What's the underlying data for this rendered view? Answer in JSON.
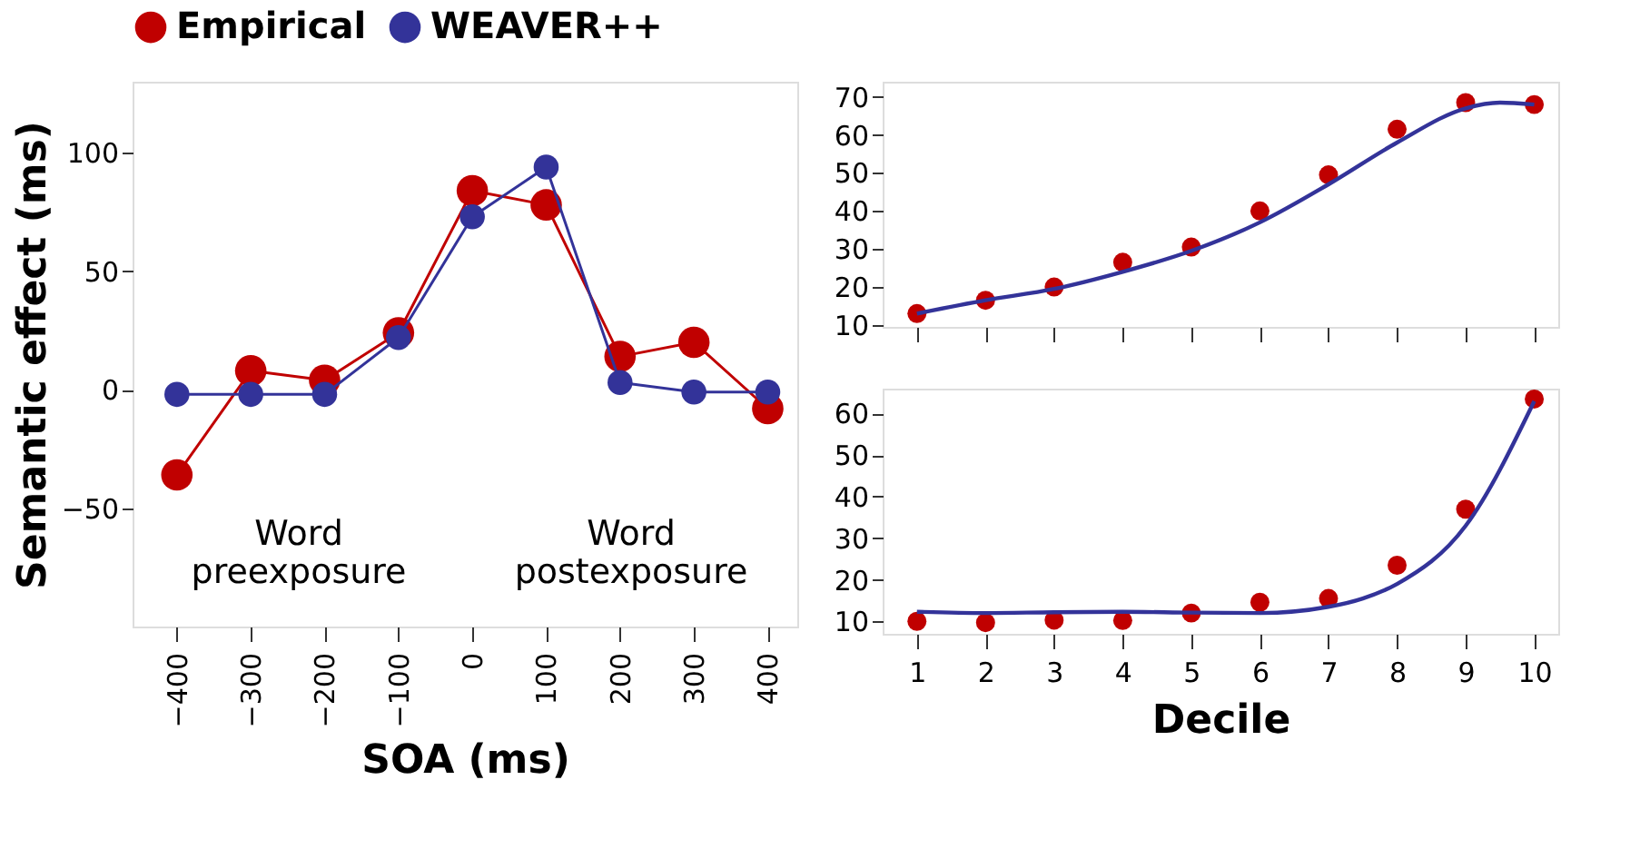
{
  "chart_data": [
    {
      "type": "line",
      "xlabel": "SOA (ms)",
      "ylabel": "Semantic effect (ms)",
      "x": [
        -400,
        -300,
        -200,
        -100,
        0,
        100,
        200,
        300,
        400
      ],
      "xlim": [
        -460,
        440
      ],
      "xticks": [
        -400,
        -300,
        -200,
        -100,
        0,
        100,
        200,
        300,
        400
      ],
      "ylim": [
        -100,
        130
      ],
      "yticks": [
        -50,
        0,
        50,
        100
      ],
      "marker": "circle",
      "grid": false,
      "legend": "top",
      "series": [
        {
          "name": "Empirical",
          "color": "#c00000",
          "values": [
            -36,
            8,
            4,
            24,
            84,
            78,
            14,
            20,
            -8
          ]
        },
        {
          "name": "WEAVER++",
          "color": "#333399",
          "values": [
            -2,
            -2,
            -2,
            22,
            73,
            94,
            3,
            -1,
            -1
          ]
        }
      ],
      "annotations": [
        "Word\npreexposure",
        "Word\npostexposure"
      ]
    },
    {
      "type": "scatter",
      "x": [
        1,
        2,
        3,
        4,
        5,
        6,
        7,
        8,
        9,
        10
      ],
      "xlim": [
        0.5,
        10.35
      ],
      "xticks": [
        1,
        2,
        3,
        4,
        5,
        6,
        7,
        8,
        9,
        10
      ],
      "ylim": [
        9.5,
        74
      ],
      "yticks": [
        10,
        20,
        30,
        40,
        50,
        60,
        70
      ],
      "tick_labels": "y",
      "grid": false,
      "legend": "top",
      "series": [
        {
          "name": "Empirical",
          "color": "#c00000",
          "values": [
            13,
            16.5,
            20,
            26.5,
            30.5,
            40,
            49.5,
            61.5,
            68.5,
            68
          ]
        },
        {
          "name": "WEAVER++",
          "type": "line",
          "marker": "none",
          "color": "#333399",
          "x": [
            1,
            2,
            3,
            4,
            5,
            6,
            7,
            8,
            9,
            9.5,
            10
          ],
          "values": [
            13,
            16.5,
            19.5,
            24,
            29.5,
            37,
            47,
            58,
            67,
            68.5,
            68
          ]
        }
      ]
    },
    {
      "type": "scatter",
      "xlabel": "Decile",
      "x": [
        1,
        2,
        3,
        4,
        5,
        6,
        7,
        8,
        9,
        10
      ],
      "xlim": [
        0.5,
        10.35
      ],
      "xticks": [
        1,
        2,
        3,
        4,
        5,
        6,
        7,
        8,
        9,
        10
      ],
      "ylim": [
        7,
        66
      ],
      "yticks": [
        10,
        20,
        30,
        40,
        50,
        60
      ],
      "grid": false,
      "legend": "top",
      "series": [
        {
          "name": "Empirical",
          "color": "#c00000",
          "values": [
            10,
            9.7,
            10.3,
            10.2,
            12,
            14.6,
            15.5,
            23.5,
            37,
            63.5
          ]
        },
        {
          "name": "WEAVER++",
          "type": "line",
          "marker": "none",
          "color": "#333399",
          "x": [
            1,
            2,
            3,
            4,
            5,
            6,
            7,
            7.5,
            8,
            9,
            10
          ],
          "values": [
            12.3,
            12,
            12.2,
            12.3,
            12.1,
            12,
            13.5,
            15.5,
            19,
            33,
            63
          ]
        }
      ]
    }
  ]
}
